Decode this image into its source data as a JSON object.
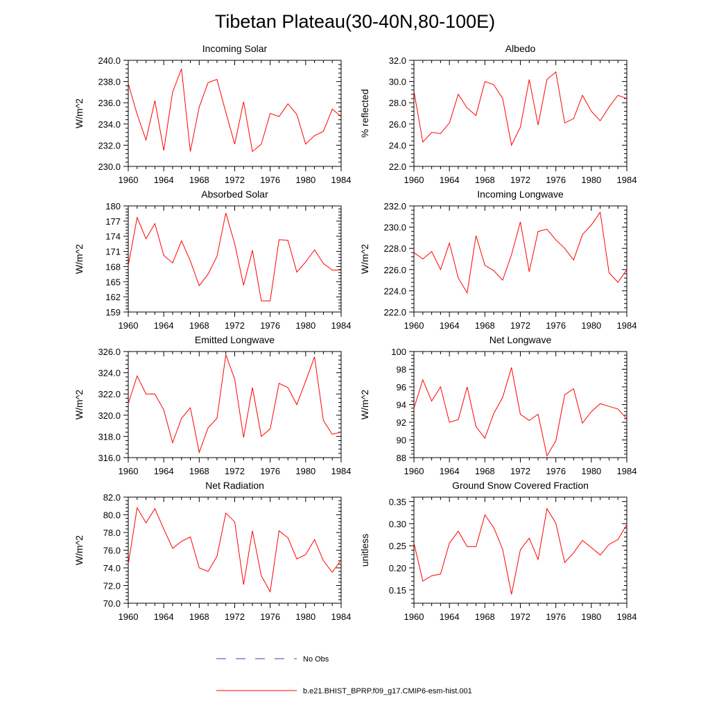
{
  "figure": {
    "title": "Tibetan Plateau(30-40N,80-100E)"
  },
  "legend": {
    "entries": [
      {
        "label": "No Obs",
        "color": "#3b3bb0",
        "style": "dashed"
      },
      {
        "label": "b.e21.BHIST_BPRP.f09_g17.CMIP6-esm-hist.001",
        "color": "#ff0000",
        "style": "solid"
      }
    ]
  },
  "chart_data": [
    {
      "type": "line",
      "title": "Incoming Solar",
      "ylabel": "W/m^2",
      "ylim": [
        230,
        240
      ],
      "yticks": [
        230,
        232,
        234,
        236,
        238,
        240
      ],
      "yticklabels": [
        "230.0",
        "232.0",
        "234.0",
        "236.0",
        "238.0",
        "240.0"
      ],
      "xlim": [
        1960,
        1984
      ],
      "xticks": [
        "1960",
        "1964",
        "1968",
        "1972",
        "1976",
        "1980",
        "1984"
      ],
      "x": [
        1960,
        1961,
        1962,
        1963,
        1964,
        1965,
        1966,
        1967,
        1968,
        1969,
        1970,
        1971,
        1972,
        1973,
        1974,
        1975,
        1976,
        1977,
        1978,
        1979,
        1980,
        1981,
        1982,
        1983,
        1984
      ],
      "series": [
        {
          "color": "#ff0000",
          "values": [
            237.8,
            234.9,
            232.5,
            236.2,
            231.5,
            237.0,
            239.2,
            231.4,
            235.6,
            237.9,
            238.2,
            235.1,
            232.1,
            236.1,
            231.4,
            232.1,
            235.0,
            234.7,
            235.9,
            234.9,
            232.1,
            232.9,
            233.3,
            235.4,
            234.7
          ]
        }
      ]
    },
    {
      "type": "line",
      "title": "Albedo",
      "ylabel": "% reflected",
      "ylim": [
        22,
        32
      ],
      "yticks": [
        22,
        24,
        26,
        28,
        30,
        32
      ],
      "yticklabels": [
        "22.0",
        "24.0",
        "26.0",
        "28.0",
        "30.0",
        "32.0"
      ],
      "xlim": [
        1960,
        1984
      ],
      "xticks": [
        "1960",
        "1964",
        "1968",
        "1972",
        "1976",
        "1980",
        "1984"
      ],
      "x": [
        1960,
        1961,
        1962,
        1963,
        1964,
        1965,
        1966,
        1967,
        1968,
        1969,
        1970,
        1971,
        1972,
        1973,
        1974,
        1975,
        1976,
        1977,
        1978,
        1979,
        1980,
        1981,
        1982,
        1983,
        1984
      ],
      "series": [
        {
          "color": "#ff0000",
          "values": [
            29.1,
            24.3,
            25.2,
            25.1,
            26.1,
            28.8,
            27.5,
            26.8,
            30.0,
            29.7,
            28.4,
            24.0,
            25.7,
            30.2,
            25.9,
            30.2,
            30.9,
            26.1,
            26.5,
            28.7,
            27.2,
            26.3,
            27.6,
            28.7,
            28.4
          ]
        }
      ]
    },
    {
      "type": "line",
      "title": "Absorbed Solar",
      "ylabel": "W/m^2",
      "ylim": [
        159,
        180
      ],
      "yticks": [
        159,
        162,
        165,
        168,
        171,
        174,
        177,
        180
      ],
      "yticklabels": [
        "159",
        "162",
        "165",
        "168",
        "171",
        "174",
        "177",
        "180"
      ],
      "xlim": [
        1960,
        1984
      ],
      "xticks": [
        "1960",
        "1964",
        "1968",
        "1972",
        "1976",
        "1980",
        "1984"
      ],
      "x": [
        1960,
        1961,
        1962,
        1963,
        1964,
        1965,
        1966,
        1967,
        1968,
        1969,
        1970,
        1971,
        1972,
        1973,
        1974,
        1975,
        1976,
        1977,
        1978,
        1979,
        1980,
        1981,
        1982,
        1983,
        1984
      ],
      "series": [
        {
          "color": "#ff0000",
          "values": [
            168.2,
            177.7,
            173.5,
            176.5,
            170.2,
            168.7,
            173.1,
            169.1,
            164.2,
            166.5,
            170.0,
            178.6,
            172.5,
            164.3,
            171.2,
            161.2,
            161.2,
            173.3,
            173.2,
            166.9,
            168.9,
            171.3,
            168.6,
            167.3,
            167.3
          ]
        }
      ]
    },
    {
      "type": "line",
      "title": "Incoming Longwave",
      "ylabel": "W/m^2",
      "ylim": [
        222,
        232
      ],
      "yticks": [
        222,
        224,
        226,
        228,
        230,
        232
      ],
      "yticklabels": [
        "222.0",
        "224.0",
        "226.0",
        "228.0",
        "230.0",
        "232.0"
      ],
      "xlim": [
        1960,
        1984
      ],
      "xticks": [
        "1960",
        "1964",
        "1968",
        "1972",
        "1976",
        "1980",
        "1984"
      ],
      "x": [
        1960,
        1961,
        1962,
        1963,
        1964,
        1965,
        1966,
        1967,
        1968,
        1969,
        1970,
        1971,
        1972,
        1973,
        1974,
        1975,
        1976,
        1977,
        1978,
        1979,
        1980,
        1981,
        1982,
        1983,
        1984
      ],
      "series": [
        {
          "color": "#ff0000",
          "values": [
            227.6,
            227.0,
            227.7,
            226.0,
            228.5,
            225.2,
            223.8,
            229.2,
            226.4,
            225.9,
            225.0,
            227.4,
            230.5,
            225.8,
            229.6,
            229.8,
            228.8,
            228.0,
            226.9,
            229.3,
            230.2,
            231.4,
            225.7,
            224.8,
            226.0
          ]
        }
      ]
    },
    {
      "type": "line",
      "title": "Emitted Longwave",
      "ylabel": "W/m^2",
      "ylim": [
        316,
        326
      ],
      "yticks": [
        316,
        318,
        320,
        322,
        324,
        326
      ],
      "yticklabels": [
        "316.0",
        "318.0",
        "320.0",
        "322.0",
        "324.0",
        "326.0"
      ],
      "xlim": [
        1960,
        1984
      ],
      "xticks": [
        "1960",
        "1964",
        "1968",
        "1972",
        "1976",
        "1980",
        "1984"
      ],
      "x": [
        1960,
        1961,
        1962,
        1963,
        1964,
        1965,
        1966,
        1967,
        1968,
        1969,
        1970,
        1971,
        1972,
        1973,
        1974,
        1975,
        1976,
        1977,
        1978,
        1979,
        1980,
        1981,
        1982,
        1983,
        1984
      ],
      "series": [
        {
          "color": "#ff0000",
          "values": [
            321.1,
            323.7,
            322.0,
            322.0,
            320.5,
            317.4,
            319.7,
            320.7,
            316.5,
            318.8,
            319.7,
            325.7,
            323.4,
            317.9,
            322.6,
            318.0,
            318.7,
            323.0,
            322.6,
            321.0,
            323.2,
            325.5,
            319.5,
            318.2,
            318.4
          ]
        }
      ]
    },
    {
      "type": "line",
      "title": "Net Longwave",
      "ylabel": "W/m^2",
      "ylim": [
        88,
        100
      ],
      "yticks": [
        88,
        90,
        92,
        94,
        96,
        98,
        100
      ],
      "yticklabels": [
        "88",
        "90",
        "92",
        "94",
        "96",
        "98",
        "100"
      ],
      "xlim": [
        1960,
        1984
      ],
      "xticks": [
        "1960",
        "1964",
        "1968",
        "1972",
        "1976",
        "1980",
        "1984"
      ],
      "x": [
        1960,
        1961,
        1962,
        1963,
        1964,
        1965,
        1966,
        1967,
        1968,
        1969,
        1970,
        1971,
        1972,
        1973,
        1974,
        1975,
        1976,
        1977,
        1978,
        1979,
        1980,
        1981,
        1982,
        1983,
        1984
      ],
      "series": [
        {
          "color": "#ff0000",
          "values": [
            93.6,
            96.8,
            94.4,
            96.0,
            92.0,
            92.3,
            96.0,
            91.5,
            90.2,
            93.0,
            94.8,
            98.2,
            92.9,
            92.2,
            92.9,
            88.2,
            89.9,
            95.1,
            95.8,
            91.9,
            93.2,
            94.1,
            93.8,
            93.5,
            92.4
          ]
        }
      ]
    },
    {
      "type": "line",
      "title": "Net Radiation",
      "ylabel": "W/m^2",
      "ylim": [
        70,
        82
      ],
      "yticks": [
        70,
        72,
        74,
        76,
        78,
        80,
        82
      ],
      "yticklabels": [
        "70.0",
        "72.0",
        "74.0",
        "76.0",
        "78.0",
        "80.0",
        "82.0"
      ],
      "xlim": [
        1960,
        1984
      ],
      "xticks": [
        "1960",
        "1964",
        "1968",
        "1972",
        "1976",
        "1980",
        "1984"
      ],
      "x": [
        1960,
        1961,
        1962,
        1963,
        1964,
        1965,
        1966,
        1967,
        1968,
        1969,
        1970,
        1971,
        1972,
        1973,
        1974,
        1975,
        1976,
        1977,
        1978,
        1979,
        1980,
        1981,
        1982,
        1983,
        1984
      ],
      "series": [
        {
          "color": "#ff0000",
          "values": [
            74.4,
            80.8,
            79.1,
            80.7,
            78.4,
            76.2,
            77.0,
            77.5,
            74.0,
            73.6,
            75.3,
            80.2,
            79.2,
            72.1,
            78.2,
            73.1,
            71.3,
            78.2,
            77.4,
            75.0,
            75.5,
            77.2,
            74.8,
            73.5,
            74.9
          ]
        }
      ]
    },
    {
      "type": "line",
      "title": "Ground Snow Covered Fraction",
      "ylabel": "unitless",
      "ylim": [
        0.12,
        0.36
      ],
      "yticks": [
        0.15,
        0.2,
        0.25,
        0.3,
        0.35
      ],
      "yticklabels": [
        "0.15",
        "0.20",
        "0.25",
        "0.30",
        "0.35"
      ],
      "xlim": [
        1960,
        1984
      ],
      "xticks": [
        "1960",
        "1964",
        "1968",
        "1972",
        "1976",
        "1980",
        "1984"
      ],
      "x": [
        1960,
        1961,
        1962,
        1963,
        1964,
        1965,
        1966,
        1967,
        1968,
        1969,
        1970,
        1971,
        1972,
        1973,
        1974,
        1975,
        1976,
        1977,
        1978,
        1979,
        1980,
        1981,
        1982,
        1983,
        1984
      ],
      "series": [
        {
          "color": "#ff0000",
          "values": [
            0.256,
            0.17,
            0.182,
            0.186,
            0.256,
            0.283,
            0.248,
            0.248,
            0.32,
            0.291,
            0.242,
            0.14,
            0.241,
            0.267,
            0.219,
            0.334,
            0.301,
            0.212,
            0.234,
            0.262,
            0.246,
            0.229,
            0.253,
            0.264,
            0.298
          ]
        }
      ]
    }
  ]
}
